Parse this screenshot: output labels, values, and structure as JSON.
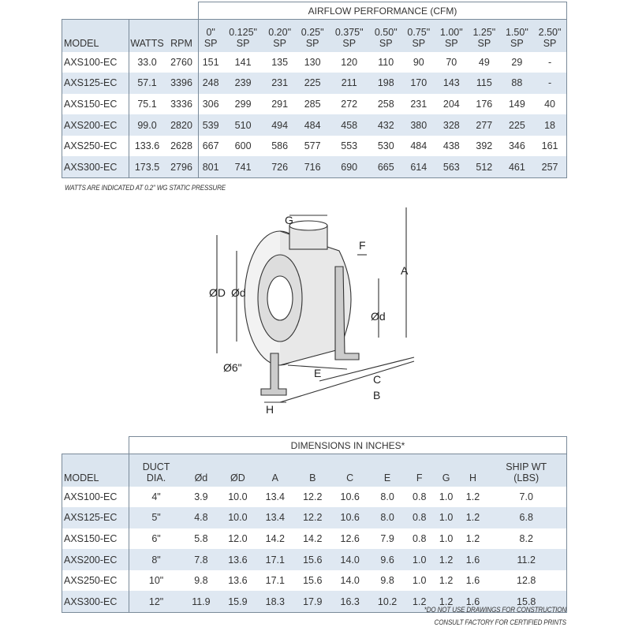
{
  "airflow": {
    "title": "AIRFLOW PERFORMANCE (CFM)",
    "headers": [
      "MODEL",
      "WATTS",
      "RPM",
      "0\"\nSP",
      "0.125\"\nSP",
      "0.20\"\nSP",
      "0.25\"\nSP",
      "0.375\"\nSP",
      "0.50\"\nSP",
      "0.75\"\nSP",
      "1.00\"\nSP",
      "1.25\"\nSP",
      "1.50\"\nSP",
      "2.50\"\nSP"
    ],
    "rows": [
      [
        "AXS100-EC",
        "33.0",
        "2760",
        "151",
        "141",
        "135",
        "130",
        "120",
        "110",
        "90",
        "70",
        "49",
        "29",
        "-"
      ],
      [
        "AXS125-EC",
        "57.1",
        "3396",
        "248",
        "239",
        "231",
        "225",
        "211",
        "198",
        "170",
        "143",
        "115",
        "88",
        "-"
      ],
      [
        "AXS150-EC",
        "75.1",
        "3336",
        "306",
        "299",
        "291",
        "285",
        "272",
        "258",
        "231",
        "204",
        "176",
        "149",
        "40"
      ],
      [
        "AXS200-EC",
        "99.0",
        "2820",
        "539",
        "510",
        "494",
        "484",
        "458",
        "432",
        "380",
        "328",
        "277",
        "225",
        "18"
      ],
      [
        "AXS250-EC",
        "133.6",
        "2628",
        "667",
        "600",
        "586",
        "577",
        "553",
        "530",
        "484",
        "438",
        "392",
        "346",
        "161"
      ],
      [
        "AXS300-EC",
        "173.5",
        "2796",
        "801",
        "741",
        "726",
        "716",
        "690",
        "665",
        "614",
        "563",
        "512",
        "461",
        "257"
      ]
    ],
    "footnote": "WATTS ARE INDICATED AT 0.2\" WG STATIC PRESSURE"
  },
  "diagram": {
    "labels": {
      "G": "G",
      "F": "F",
      "A": "A",
      "OD": "ØD",
      "Od_left": "Ød",
      "Od_right": "Ød",
      "O6": "Ø6\"",
      "E": "E",
      "C": "C",
      "B": "B",
      "H": "H"
    }
  },
  "dimensions": {
    "title": "DIMENSIONS IN INCHES*",
    "headers": [
      "MODEL",
      "DUCT\nDIA.",
      "Ød",
      "ØD",
      "A",
      "B",
      "C",
      "E",
      "F",
      "G",
      "H",
      "SHIP WT\n(LBS)"
    ],
    "rows": [
      [
        "AXS100-EC",
        "4\"",
        "3.9",
        "10.0",
        "13.4",
        "12.2",
        "10.6",
        "8.0",
        "0.8",
        "1.0",
        "1.2",
        "7.0"
      ],
      [
        "AXS125-EC",
        "5\"",
        "4.8",
        "10.0",
        "13.4",
        "12.2",
        "10.6",
        "8.0",
        "0.8",
        "1.0",
        "1.2",
        "6.8"
      ],
      [
        "AXS150-EC",
        "6\"",
        "5.8",
        "12.0",
        "14.2",
        "14.2",
        "12.6",
        "7.9",
        "0.8",
        "1.0",
        "1.2",
        "8.2"
      ],
      [
        "AXS200-EC",
        "8\"",
        "7.8",
        "13.6",
        "17.1",
        "15.6",
        "14.0",
        "9.6",
        "1.0",
        "1.2",
        "1.6",
        "11.2"
      ],
      [
        "AXS250-EC",
        "10\"",
        "9.8",
        "13.6",
        "17.1",
        "15.6",
        "14.0",
        "9.8",
        "1.0",
        "1.2",
        "1.6",
        "12.8"
      ],
      [
        "AXS300-EC",
        "12\"",
        "11.9",
        "15.9",
        "18.3",
        "17.9",
        "16.3",
        "10.2",
        "1.2",
        "1.2",
        "1.6",
        "15.8"
      ]
    ],
    "footnote_1": "*DO NOT USE DRAWINGS FOR CONSTRUCTION",
    "footnote_2": "CONSULT FACTORY FOR CERTIFIED PRINTS"
  }
}
